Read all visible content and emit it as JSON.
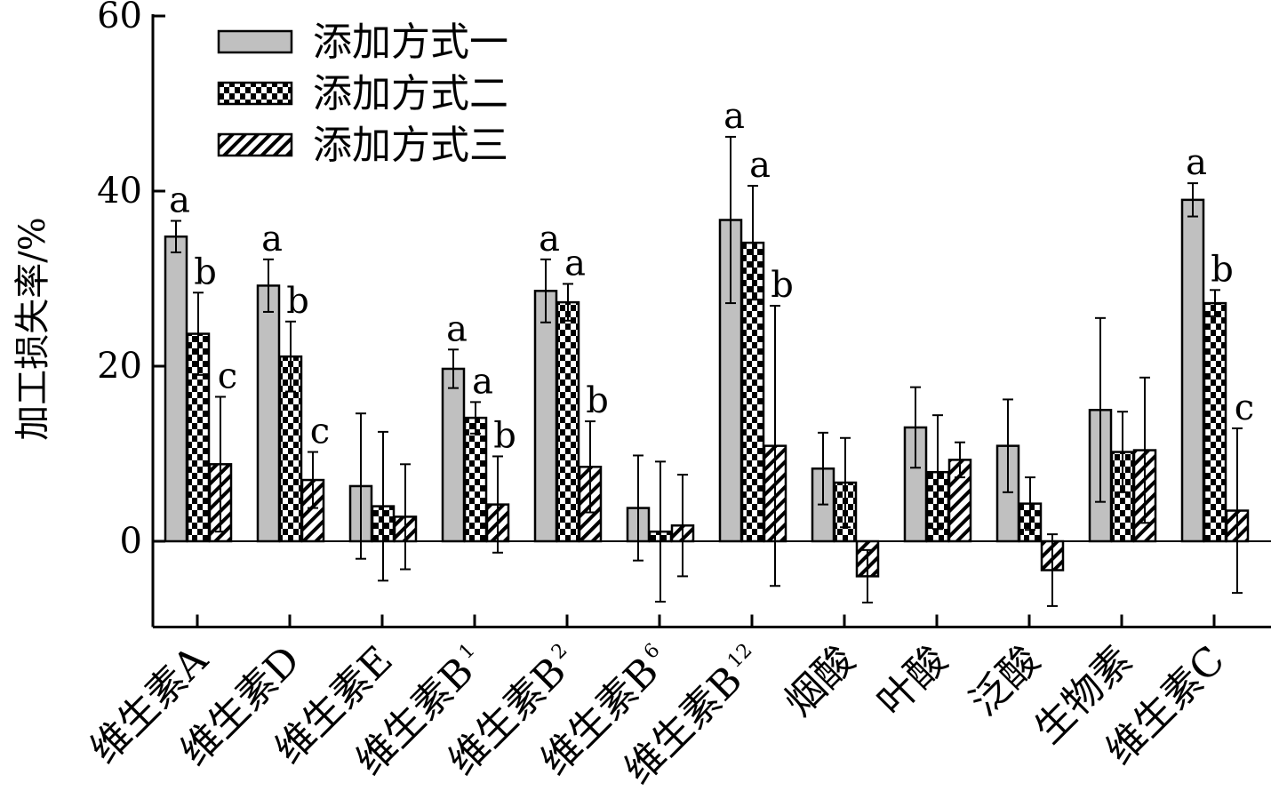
{
  "chart_data": {
    "type": "bar",
    "ylabel": "加工损失率/%",
    "xlabel": "",
    "ylim": [
      -10,
      60
    ],
    "yticks": [
      "0",
      "20",
      "40",
      "60"
    ],
    "ytick_values": [
      0,
      20,
      40,
      60
    ],
    "grid": false,
    "legend_position": "top-left",
    "categories": [
      {
        "main": "维生素A",
        "sub": ""
      },
      {
        "main": "维生素D",
        "sub": ""
      },
      {
        "main": "维生素E",
        "sub": ""
      },
      {
        "main": "维生素B",
        "sub": "1"
      },
      {
        "main": "维生素B",
        "sub": "2"
      },
      {
        "main": "维生素B",
        "sub": "6"
      },
      {
        "main": "维生素B",
        "sub": "12"
      },
      {
        "main": "烟酸",
        "sub": ""
      },
      {
        "main": "叶酸",
        "sub": ""
      },
      {
        "main": "泛酸",
        "sub": ""
      },
      {
        "main": "生物素",
        "sub": ""
      },
      {
        "main": "维生素C",
        "sub": ""
      }
    ],
    "series": [
      {
        "name": "添加方式一",
        "pattern": "gray",
        "values": [
          34.8,
          29.2,
          6.3,
          19.7,
          28.6,
          3.8,
          36.7,
          8.3,
          13.0,
          10.9,
          15.0,
          39.0
        ],
        "errors": [
          1.8,
          3.0,
          8.3,
          2.2,
          3.6,
          6.0,
          9.5,
          4.1,
          4.6,
          5.3,
          10.5,
          1.9
        ],
        "letters": [
          "a",
          "a",
          "",
          "a",
          "a",
          "",
          "a",
          "",
          "",
          "",
          "",
          "a"
        ]
      },
      {
        "name": "添加方式二",
        "pattern": "checker",
        "values": [
          23.7,
          21.1,
          4.0,
          14.1,
          27.3,
          1.1,
          34.1,
          6.7,
          7.9,
          4.3,
          10.2,
          27.2
        ],
        "errors": [
          4.7,
          4.0,
          8.5,
          1.8,
          2.1,
          8.0,
          6.5,
          5.1,
          6.5,
          3.0,
          4.6,
          1.5
        ],
        "letters": [
          "b",
          "b",
          "",
          "a",
          "a",
          "",
          "a",
          "",
          "",
          "",
          "",
          "b"
        ]
      },
      {
        "name": "添加方式三",
        "pattern": "hatch",
        "values": [
          8.8,
          7.0,
          2.8,
          4.2,
          8.5,
          1.8,
          10.9,
          -4.0,
          9.3,
          -3.3,
          10.4,
          3.5
        ],
        "errors": [
          7.7,
          3.2,
          6.0,
          5.5,
          5.2,
          5.8,
          16.0,
          3.0,
          2.0,
          4.1,
          8.3,
          9.4
        ],
        "letters": [
          "c",
          "c",
          "",
          "b",
          "b",
          "",
          "b",
          "",
          "",
          "",
          "",
          "c"
        ]
      }
    ],
    "colors": {
      "gray": "#c0c0c0",
      "ink": "#000000"
    }
  }
}
